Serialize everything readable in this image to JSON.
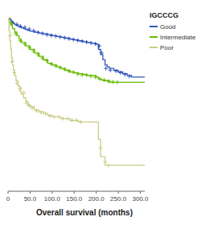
{
  "chart_data": {
    "type": "step",
    "xlabel": "Overall survival (months)",
    "legend_title": "IGCCCG",
    "legend": "right",
    "grid": false,
    "tick_labels": "x",
    "xlim": [
      0,
      310
    ],
    "ylim": [
      0,
      1.05
    ],
    "xticks": [
      0,
      {
        "value": 50.0,
        "label": "50.0"
      },
      {
        "value": 100.0,
        "label": "100.0"
      },
      {
        "value": 150.0,
        "label": "150.0"
      },
      {
        "value": 200.0,
        "label": "200.0"
      },
      {
        "value": 250.0,
        "label": "250.0"
      },
      {
        "value": 300.0,
        "label": "300.0"
      }
    ],
    "series": [
      {
        "name": "Good",
        "color": "#3355bb",
        "x": [
          0,
          5,
          8,
          12,
          15,
          18,
          22,
          25,
          30,
          35,
          40,
          45,
          50,
          60,
          70,
          80,
          90,
          100,
          110,
          120,
          130,
          140,
          150,
          160,
          170,
          180,
          190,
          200,
          205,
          210,
          215,
          220,
          225,
          230,
          240,
          250,
          260,
          270,
          280
        ],
        "values": [
          1.0,
          0.99,
          0.98,
          0.97,
          0.965,
          0.96,
          0.955,
          0.95,
          0.945,
          0.94,
          0.935,
          0.93,
          0.925,
          0.92,
          0.915,
          0.91,
          0.905,
          0.9,
          0.895,
          0.89,
          0.885,
          0.88,
          0.875,
          0.87,
          0.865,
          0.86,
          0.855,
          0.85,
          0.82,
          0.79,
          0.76,
          0.73,
          0.72,
          0.71,
          0.7,
          0.69,
          0.68,
          0.67,
          0.66
        ],
        "censor_x": [
          10,
          20,
          28,
          38,
          48,
          58,
          68,
          78,
          88,
          98,
          108,
          118,
          128,
          138,
          148,
          158,
          168,
          178,
          188,
          198,
          207,
          212,
          222,
          232,
          245,
          255,
          265,
          275
        ],
        "censor_y": [
          0.975,
          0.965,
          0.955,
          0.948,
          0.938,
          0.928,
          0.918,
          0.912,
          0.905,
          0.9,
          0.897,
          0.892,
          0.887,
          0.882,
          0.877,
          0.872,
          0.867,
          0.862,
          0.857,
          0.852,
          0.84,
          0.8,
          0.71,
          0.7,
          0.695,
          0.685,
          0.675,
          0.665
        ]
      },
      {
        "name": "Intermediate",
        "color": "#66bb00",
        "x": [
          0,
          3,
          6,
          10,
          15,
          20,
          25,
          30,
          40,
          50,
          60,
          70,
          80,
          90,
          100,
          110,
          120,
          130,
          140,
          150,
          160,
          170,
          180,
          190,
          200,
          205,
          210,
          215,
          220,
          225,
          230,
          240,
          250
        ],
        "values": [
          1.0,
          0.98,
          0.96,
          0.94,
          0.92,
          0.9,
          0.88,
          0.86,
          0.84,
          0.82,
          0.8,
          0.78,
          0.76,
          0.74,
          0.73,
          0.72,
          0.71,
          0.7,
          0.69,
          0.685,
          0.68,
          0.675,
          0.67,
          0.67,
          0.66,
          0.65,
          0.645,
          0.64,
          0.64,
          0.64,
          0.63,
          0.63,
          0.63
        ],
        "censor_x": [
          8,
          18,
          28,
          38,
          48,
          58,
          68,
          78,
          88,
          98,
          108,
          118,
          128,
          138,
          148,
          158,
          168,
          178,
          188,
          198,
          208,
          218,
          228,
          238,
          248
        ],
        "censor_y": [
          0.97,
          0.91,
          0.87,
          0.85,
          0.83,
          0.81,
          0.79,
          0.77,
          0.755,
          0.735,
          0.725,
          0.715,
          0.705,
          0.695,
          0.688,
          0.678,
          0.673,
          0.672,
          0.665,
          0.66,
          0.65,
          0.643,
          0.635,
          0.632,
          0.63
        ]
      },
      {
        "name": "Poor",
        "color": "#cccc88",
        "x": [
          0,
          2,
          4,
          6,
          8,
          10,
          12,
          15,
          18,
          22,
          26,
          30,
          35,
          40,
          45,
          50,
          60,
          70,
          80,
          90,
          100,
          110,
          120,
          130,
          140,
          150,
          160,
          200,
          205,
          210,
          220,
          230
        ],
        "values": [
          1.0,
          0.93,
          0.87,
          0.82,
          0.77,
          0.73,
          0.7,
          0.67,
          0.64,
          0.61,
          0.58,
          0.56,
          0.54,
          0.52,
          0.5,
          0.49,
          0.47,
          0.46,
          0.45,
          0.44,
          0.43,
          0.43,
          0.42,
          0.42,
          0.41,
          0.41,
          0.4,
          0.4,
          0.3,
          0.2,
          0.15,
          0.15
        ],
        "censor_x": [
          5,
          9,
          14,
          20,
          28,
          36,
          42,
          48,
          55,
          65,
          75,
          85,
          95,
          105,
          115,
          125,
          135,
          145,
          155,
          165,
          210,
          220,
          228
        ],
        "censor_y": [
          0.9,
          0.75,
          0.685,
          0.625,
          0.595,
          0.57,
          0.51,
          0.495,
          0.48,
          0.465,
          0.455,
          0.448,
          0.435,
          0.43,
          0.43,
          0.42,
          0.42,
          0.41,
          0.41,
          0.4,
          0.25,
          0.17,
          0.15
        ]
      }
    ]
  }
}
